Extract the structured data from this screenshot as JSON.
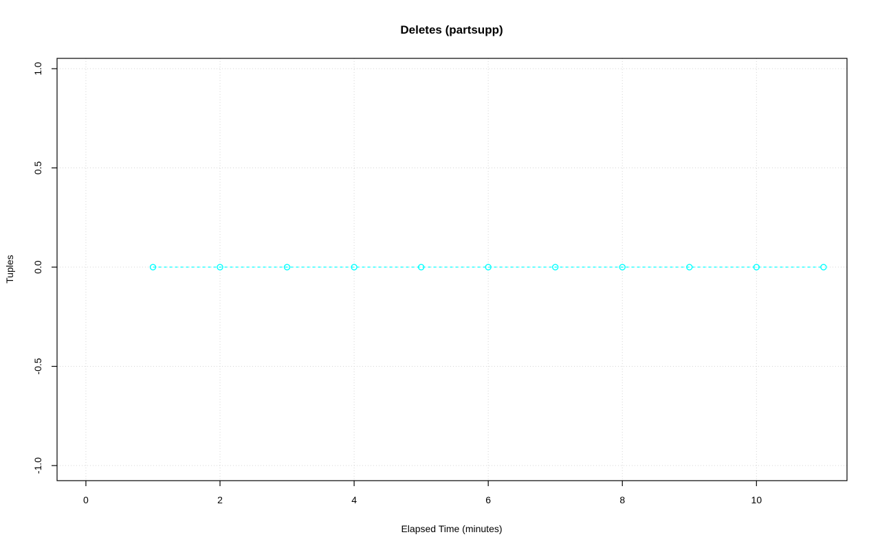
{
  "page": {
    "background": "#ffffff"
  },
  "chart_data": {
    "type": "line",
    "title": "Deletes (partsupp)",
    "xlabel": "Elapsed Time (minutes)",
    "ylabel": "Tuples",
    "x": [
      1,
      2,
      3,
      4,
      5,
      6,
      7,
      8,
      9,
      10,
      11
    ],
    "y": [
      0,
      0,
      0,
      0,
      0,
      0,
      0,
      0,
      0,
      0,
      0
    ],
    "xlim": [
      -0.43,
      11.35
    ],
    "ylim": [
      -1.076,
      1.052
    ],
    "xticks": [
      0,
      2,
      4,
      6,
      8,
      10
    ],
    "yticks": [
      -1.0,
      -0.5,
      0.0,
      0.5,
      1.0
    ],
    "xtick_labels": [
      "0",
      "2",
      "4",
      "6",
      "8",
      "10"
    ],
    "ytick_labels": [
      "-1.0",
      "-0.5",
      "0.0",
      "0.5",
      "1.0"
    ],
    "grid": true,
    "grid_style": "dotted",
    "line_style": "dashed",
    "marker": "open-circle",
    "legend": "none",
    "series_color": "#00ffff",
    "grid_color": "#d3d3d3",
    "axis_color": "#000000",
    "text_color": "#000000"
  }
}
